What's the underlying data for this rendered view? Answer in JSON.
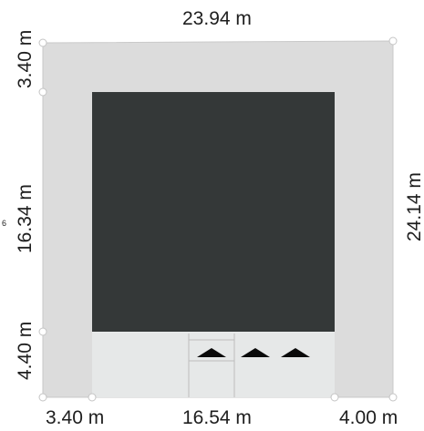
{
  "plan": {
    "colors": {
      "lot": "#dcdcdc",
      "lot_edge": "#c9c9c9",
      "building": "#343838",
      "entrance_area": "#e6e8e8",
      "parking_lines": "#bdbdbd",
      "arrows": "#0a0a0a",
      "vertex": "#ffffff"
    },
    "dimensions": {
      "top": "23.94 m",
      "left_top": "3.40 m",
      "left_middle": "16.34 m",
      "left_bottom": "4.40 m",
      "right": "24.14 m",
      "bottom_left": "3.40 m",
      "bottom_middle": "16.54 m",
      "bottom_right": "4.00 m"
    },
    "marker_fragment": "6",
    "entrance_arrow_count": 3
  }
}
